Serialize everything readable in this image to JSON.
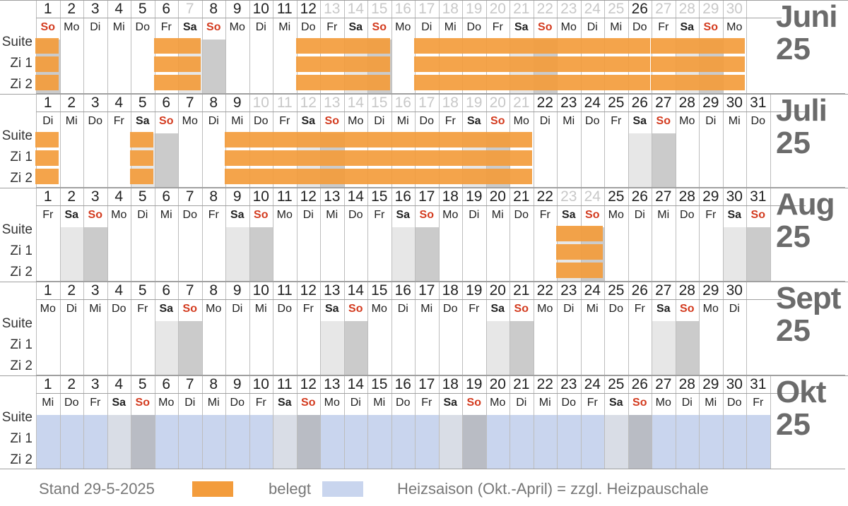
{
  "row_labels": [
    "Suite",
    "Zi 1",
    "Zi 2"
  ],
  "colors": {
    "booked": "#f39c3c",
    "heating": "#c9d5ee",
    "saturday": "#e7e7e7",
    "sunday": "#cbcbcb",
    "sunday_text": "#d33b1f",
    "label_gray": "#6b6b6b"
  },
  "months": [
    {
      "name": "Juni",
      "year": "25",
      "days": 30,
      "first_weekday": 6,
      "weekday_labels": [
        "So",
        "Mo",
        "Di",
        "Mi",
        "Do",
        "Fr",
        "Sa",
        "So",
        "Mo",
        "Di",
        "Mi",
        "Do",
        "Fr",
        "Sa",
        "So",
        "Mo",
        "Di",
        "Mi",
        "Do",
        "Fr",
        "Sa",
        "So",
        "Mo",
        "Di",
        "Mi",
        "Do",
        "Fr",
        "Sa",
        "So",
        "Mo"
      ],
      "faded_days": [
        7,
        13,
        14,
        15,
        16,
        17,
        18,
        19,
        20,
        21,
        22,
        23,
        24,
        25,
        27,
        28,
        29,
        30
      ],
      "heating": false,
      "booked": [
        {
          "start": 1,
          "end": 1
        },
        {
          "start": 6,
          "end": 7
        },
        {
          "start": 12,
          "end": 15
        },
        {
          "start": 17,
          "end": 26
        },
        {
          "start": 27,
          "end": 30
        }
      ]
    },
    {
      "name": "Juli",
      "year": "25",
      "days": 31,
      "first_weekday": 1,
      "weekday_labels": [
        "Di",
        "Mi",
        "Do",
        "Fr",
        "Sa",
        "So",
        "Mo",
        "Di",
        "Mi",
        "Do",
        "Fr",
        "Sa",
        "So",
        "Mo",
        "Di",
        "Mi",
        "Do",
        "Fr",
        "Sa",
        "So",
        "Mo",
        "Di",
        "Mi",
        "Do",
        "Fr",
        "Sa",
        "So",
        "Mo",
        "Di",
        "Mi",
        "Do"
      ],
      "faded_days": [
        10,
        11,
        12,
        13,
        14,
        15,
        16,
        17,
        18,
        19,
        20,
        21
      ],
      "heating": false,
      "booked": [
        {
          "start": 1,
          "end": 1
        },
        {
          "start": 5,
          "end": 5
        },
        {
          "start": 9,
          "end": 21
        }
      ]
    },
    {
      "name": "Aug",
      "year": "25",
      "days": 31,
      "first_weekday": 4,
      "weekday_labels": [
        "Fr",
        "Sa",
        "So",
        "Mo",
        "Di",
        "Mi",
        "Do",
        "Fr",
        "Sa",
        "So",
        "Mo",
        "Di",
        "Mi",
        "Do",
        "Fr",
        "Sa",
        "So",
        "Mo",
        "Di",
        "Mi",
        "Do",
        "Fr",
        "Sa",
        "So",
        "Mo",
        "Di",
        "Mi",
        "Do",
        "Fr",
        "Sa",
        "So"
      ],
      "faded_days": [
        23,
        24
      ],
      "heating": false,
      "booked": [
        {
          "start": 23,
          "end": 24
        }
      ]
    },
    {
      "name": "Sept",
      "year": "25",
      "days": 30,
      "first_weekday": 0,
      "weekday_labels": [
        "Mo",
        "Di",
        "Mi",
        "Do",
        "Fr",
        "Sa",
        "So",
        "Mo",
        "Di",
        "Mi",
        "Do",
        "Fr",
        "Sa",
        "So",
        "Mo",
        "Di",
        "Mi",
        "Do",
        "Fr",
        "Sa",
        "So",
        "Mo",
        "Di",
        "Mi",
        "Do",
        "Fr",
        "Sa",
        "So",
        "Mo",
        "Di"
      ],
      "faded_days": [],
      "heating": false,
      "booked": []
    },
    {
      "name": "Okt",
      "year": "25",
      "days": 31,
      "first_weekday": 2,
      "weekday_labels": [
        "Mi",
        "Do",
        "Fr",
        "Sa",
        "So",
        "Mo",
        "Di",
        "Mi",
        "Do",
        "Fr",
        "Sa",
        "So",
        "Mo",
        "Di",
        "Mi",
        "Do",
        "Fr",
        "Sa",
        "So",
        "Mo",
        "Di",
        "Mi",
        "Do",
        "Fr",
        "Sa",
        "So",
        "Mo",
        "Di",
        "Mi",
        "Do",
        "Fr"
      ],
      "faded_days": [],
      "heating": true,
      "booked": []
    }
  ],
  "legend": {
    "stand": "Stand 29-5-2025",
    "booked_label": "belegt",
    "heating_label": "Heizsaison (Okt.-April) = zzgl. Heizpauschale"
  }
}
